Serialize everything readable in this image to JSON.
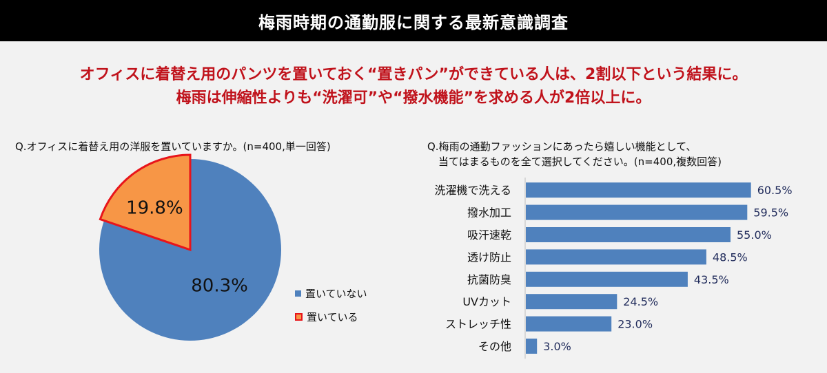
{
  "header": {
    "title": "梅雨時期の通勤服に関する最新意識調査"
  },
  "headline": {
    "line1": "オフィスに着替え用のパンツを置いておく“置きパン”ができている人は、2割以下という結果に。",
    "line2": "梅雨は伸縮性よりも“洗濯可”や“撥水機能”を求める人が2倍以上に。"
  },
  "colors": {
    "blue": "#4f81bd",
    "orange": "#f79646",
    "red": "#e8141a",
    "headline": "#c0121b",
    "label_dark": "#1f2a5a"
  },
  "chart_data": [
    {
      "type": "pie",
      "title": "Q.オフィスに着替え用の洋服を置いていますか。(n=400,単一回答)",
      "slices": [
        {
          "name": "置いていない",
          "value": 80.3,
          "label": "80.3%",
          "color": "#4f81bd"
        },
        {
          "name": "置いている",
          "value": 19.8,
          "label": "19.8%",
          "color": "#f79646",
          "highlight": "#e8141a"
        }
      ],
      "legend": "right"
    },
    {
      "type": "bar",
      "orientation": "horizontal",
      "title_lines": [
        "Q.梅雨の通勤ファッションにあったら嬉しい機能として、",
        "当てはまるものを全て選択してください。(n=400,複数回答)"
      ],
      "categories": [
        "洗濯機で洗える",
        "撥水加工",
        "吸汗速乾",
        "透け防止",
        "抗菌防臭",
        "UVカット",
        "ストレッチ性",
        "その他"
      ],
      "values": [
        60.5,
        59.5,
        55.0,
        48.5,
        43.5,
        24.5,
        23.0,
        3.0
      ],
      "labels": [
        "60.5%",
        "59.5%",
        "55.0%",
        "48.5%",
        "43.5%",
        "24.5%",
        "23.0%",
        "3.0%"
      ],
      "xlim": [
        0,
        100
      ],
      "color": "#4f81bd"
    }
  ]
}
